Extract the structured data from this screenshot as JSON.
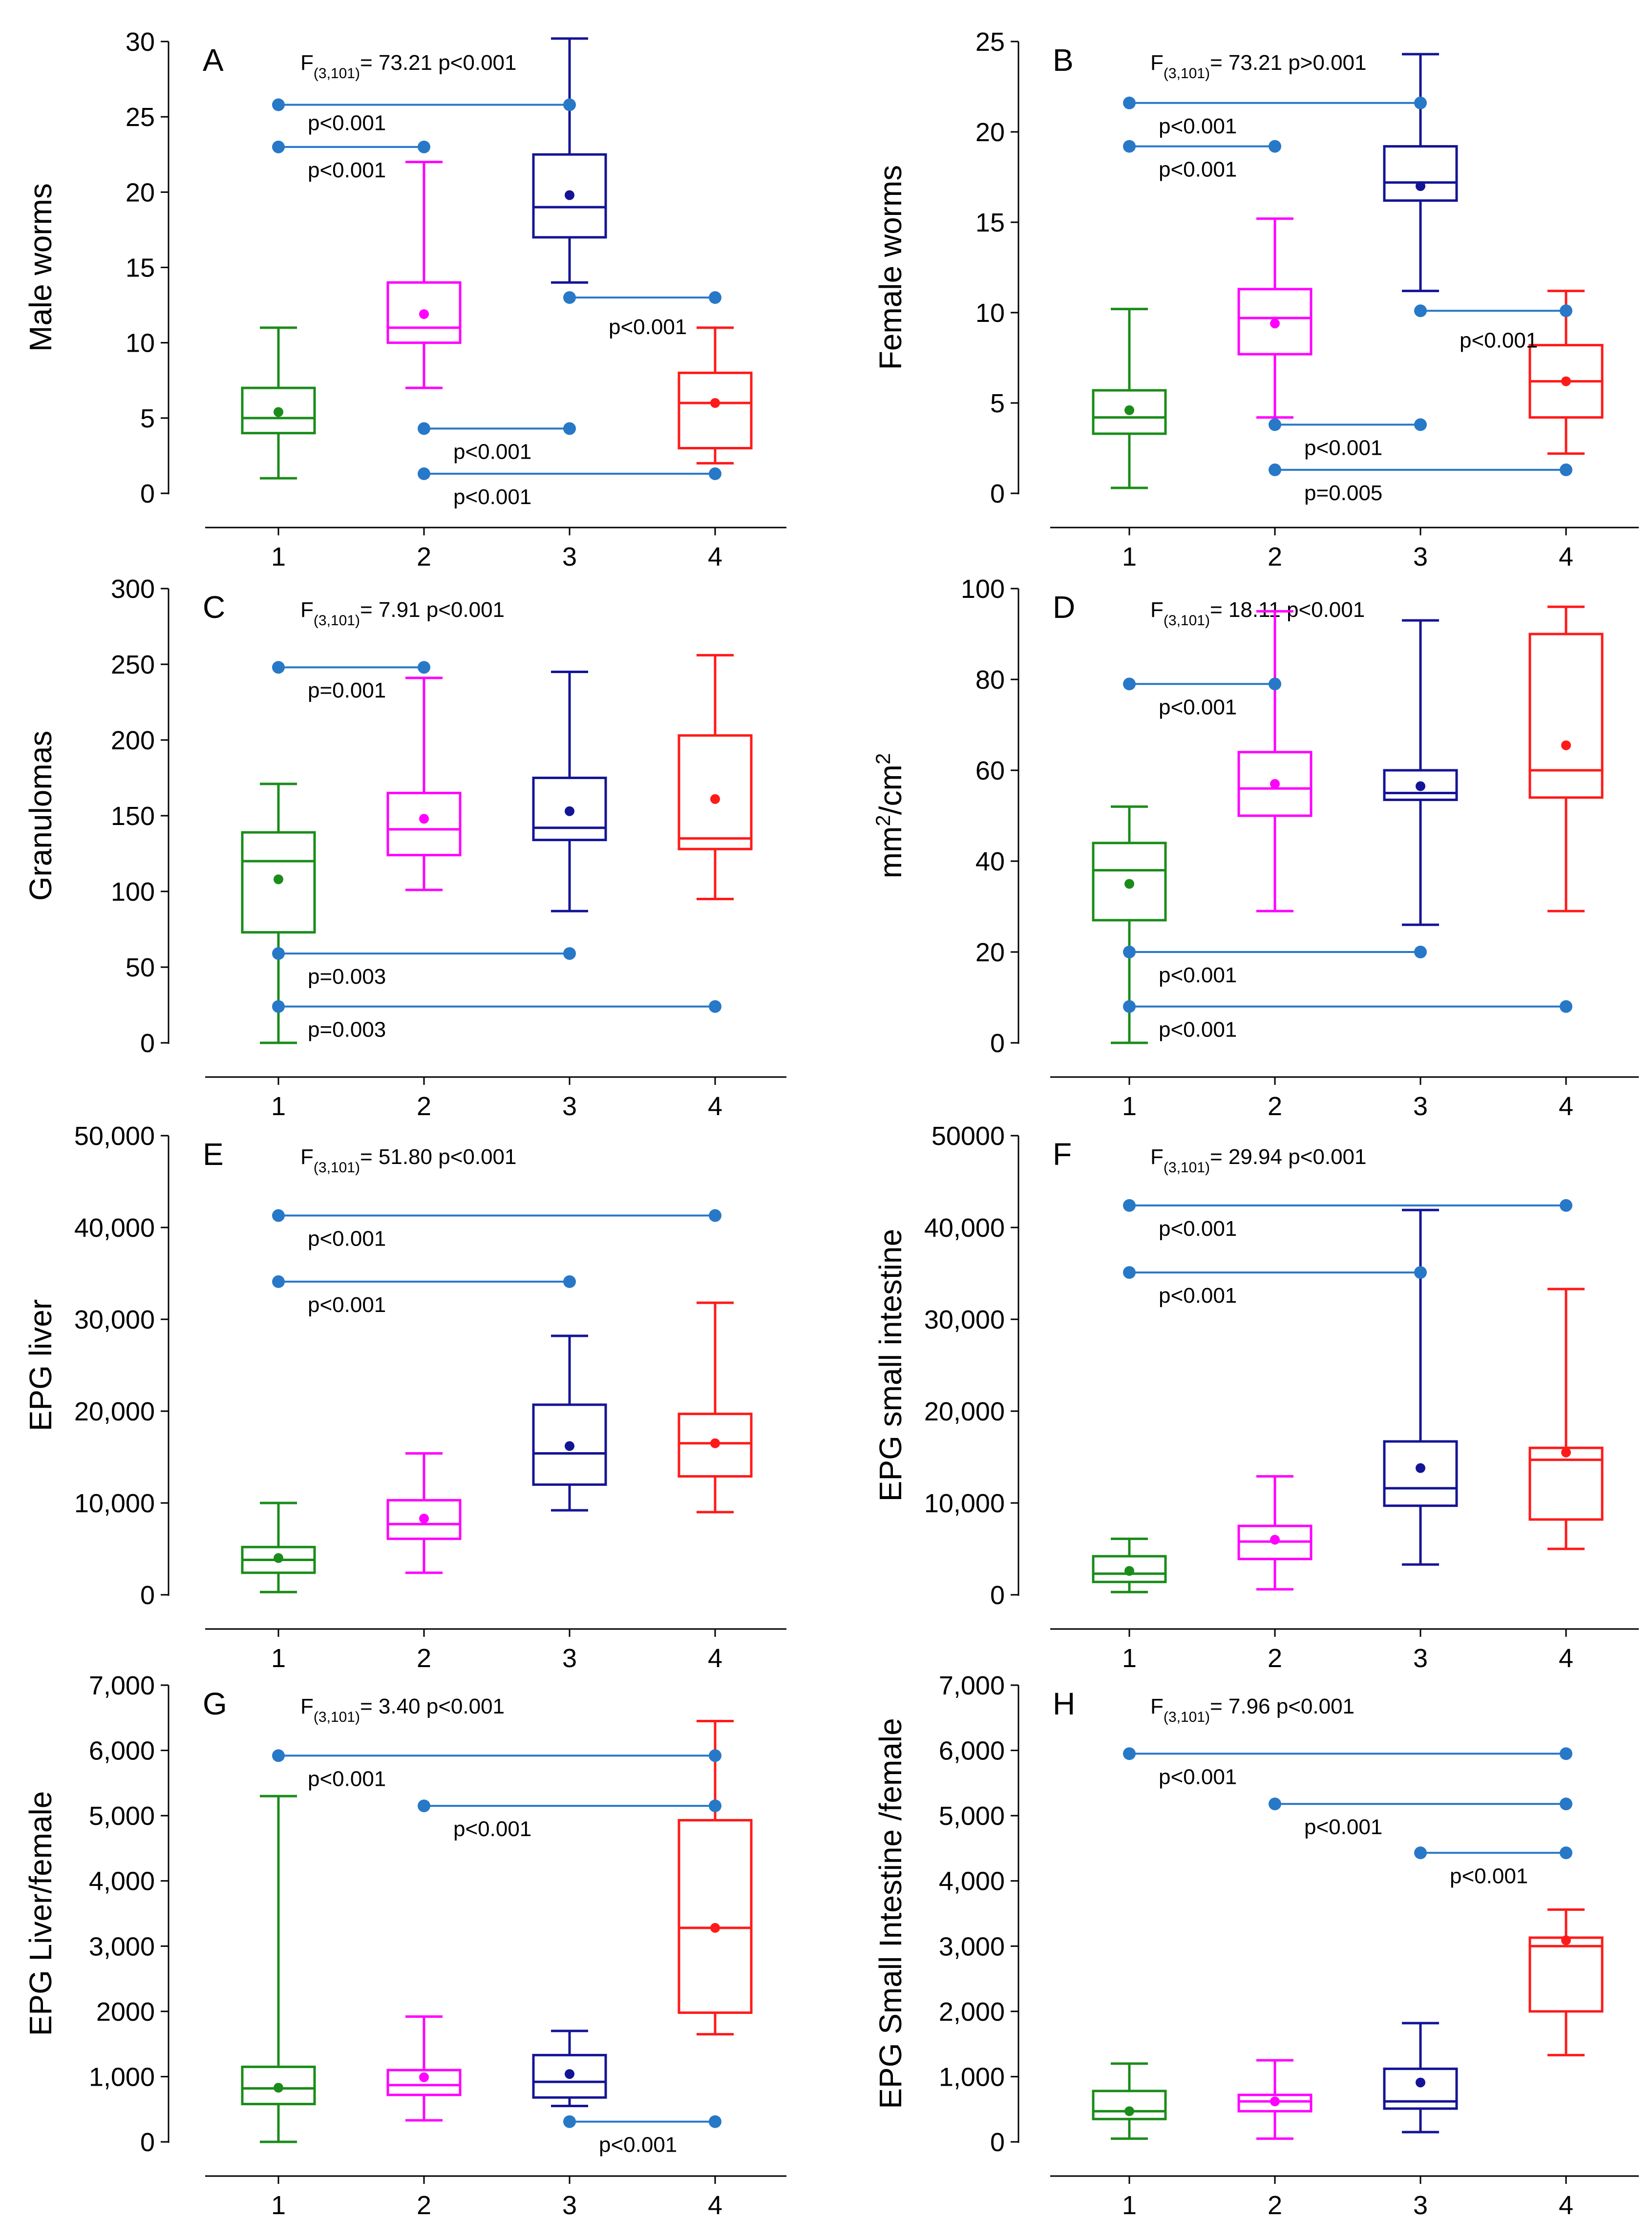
{
  "figure": {
    "group_colors": [
      "#1a8c1a",
      "#ff00ff",
      "#141496",
      "#ff1a1a"
    ],
    "annotation_color": "#2878c8"
  },
  "chart_data": [
    {
      "type": "box",
      "panel": "A",
      "ylabel": "Male worms",
      "ylim": [
        0,
        30
      ],
      "ytick_values": [
        0,
        5,
        10,
        15,
        20,
        25,
        30
      ],
      "ytick_labels": [
        "0",
        "5",
        "10",
        "15",
        "20",
        "25",
        "30"
      ],
      "categories": [
        "1",
        "2",
        "3",
        "4"
      ],
      "stat": {
        "prefix": "F",
        "sub": "(3,101)",
        "value": "= 73.21 p<0.001"
      },
      "boxes": [
        {
          "min": 1,
          "q1": 4,
          "median": 5,
          "q3": 7,
          "max": 11,
          "mean": 5.4
        },
        {
          "min": 7,
          "q1": 10,
          "median": 11,
          "q3": 14,
          "max": 22,
          "mean": 11.9
        },
        {
          "min": 14,
          "q1": 17,
          "median": 19,
          "q3": 22.5,
          "max": 30.2,
          "mean": 19.8
        },
        {
          "min": 2,
          "q1": 3,
          "median": 6,
          "q3": 8,
          "max": 11,
          "mean": 6
        }
      ],
      "comparisons": [
        {
          "from": 1,
          "to": 3,
          "y": 25.8,
          "label": "p<0.001",
          "label_pos": "above"
        },
        {
          "from": 1,
          "to": 2,
          "y": 23,
          "label": "p<0.001",
          "label_pos": "below"
        },
        {
          "from": 3,
          "to": 4,
          "y": 13,
          "label": "p<0.001",
          "label_pos": "below-right"
        },
        {
          "from": 2,
          "to": 3,
          "y": 4.3,
          "label": "p<0.001",
          "label_pos": "below"
        },
        {
          "from": 2,
          "to": 4,
          "y": 1.3,
          "label": "p<0.001",
          "label_pos": "below"
        }
      ]
    },
    {
      "type": "box",
      "panel": "B",
      "ylabel": "Female worms",
      "ylim": [
        0,
        25
      ],
      "ytick_values": [
        0,
        5,
        10,
        15,
        20,
        25
      ],
      "ytick_labels": [
        "0",
        "5",
        "10",
        "15",
        "20",
        "25"
      ],
      "categories": [
        "1",
        "2",
        "3",
        "4"
      ],
      "stat": {
        "prefix": "F",
        "sub": "(3,101)",
        "value": "= 73.21 p>0.001"
      },
      "boxes": [
        {
          "min": 0.3,
          "q1": 3.3,
          "median": 4.2,
          "q3": 5.7,
          "max": 10.2,
          "mean": 4.6
        },
        {
          "min": 4.2,
          "q1": 7.7,
          "median": 9.7,
          "q3": 11.3,
          "max": 15.2,
          "mean": 9.4
        },
        {
          "min": 11.2,
          "q1": 16.2,
          "median": 17.2,
          "q3": 19.2,
          "max": 24.3,
          "mean": 17
        },
        {
          "min": 2.2,
          "q1": 4.2,
          "median": 6.2,
          "q3": 8.2,
          "max": 11.2,
          "mean": 6.2
        }
      ],
      "comparisons": [
        {
          "from": 1,
          "to": 3,
          "y": 21.6,
          "label": "p<0.001",
          "label_pos": "below"
        },
        {
          "from": 1,
          "to": 2,
          "y": 19.2,
          "label": "p<0.001",
          "label_pos": "below"
        },
        {
          "from": 3,
          "to": 4,
          "y": 10.1,
          "label": "p<0.001",
          "label_pos": "below-right"
        },
        {
          "from": 2,
          "to": 3,
          "y": 3.8,
          "label": "p<0.001",
          "label_pos": "below"
        },
        {
          "from": 2,
          "to": 4,
          "y": 1.3,
          "label": "p=0.005",
          "label_pos": "below"
        }
      ]
    },
    {
      "type": "box",
      "panel": "C",
      "ylabel": "Granulomas",
      "ylim": [
        0,
        300
      ],
      "ytick_values": [
        0,
        50,
        100,
        150,
        200,
        250,
        300
      ],
      "ytick_labels": [
        "0",
        "50",
        "100",
        "150",
        "200",
        "250",
        "300"
      ],
      "categories": [
        "1",
        "2",
        "3",
        "4"
      ],
      "stat": {
        "prefix": "F",
        "sub": "(3,101)",
        "value": "= 7.91 p<0.001"
      },
      "boxes": [
        {
          "min": 0,
          "q1": 73,
          "median": 120,
          "q3": 139,
          "max": 171,
          "mean": 108
        },
        {
          "min": 101,
          "q1": 124,
          "median": 141,
          "q3": 165,
          "max": 241,
          "mean": 148
        },
        {
          "min": 87,
          "q1": 134,
          "median": 142,
          "q3": 175,
          "max": 245,
          "mean": 153
        },
        {
          "min": 95,
          "q1": 128,
          "median": 135,
          "q3": 203,
          "max": 256,
          "mean": 161
        }
      ],
      "comparisons": [
        {
          "from": 1,
          "to": 2,
          "y": 248,
          "label": "p=0.001",
          "label_pos": "below"
        },
        {
          "from": 1,
          "to": 3,
          "y": 59,
          "label": "p=0.003",
          "label_pos": "below"
        },
        {
          "from": 1,
          "to": 4,
          "y": 24,
          "label": "p=0.003",
          "label_pos": "below"
        }
      ]
    },
    {
      "type": "box",
      "panel": "D",
      "ylabel": "mm²/cm²",
      "ylim": [
        0,
        100
      ],
      "ytick_values": [
        0,
        20,
        40,
        60,
        80,
        100
      ],
      "ytick_labels": [
        "0",
        "20",
        "40",
        "60",
        "80",
        "100"
      ],
      "categories": [
        "1",
        "2",
        "3",
        "4"
      ],
      "stat": {
        "prefix": "F",
        "sub": "(3,101)",
        "value": "= 18.11 p<0.001"
      },
      "boxes": [
        {
          "min": 0,
          "q1": 27,
          "median": 38,
          "q3": 44,
          "max": 52,
          "mean": 35
        },
        {
          "min": 29,
          "q1": 50,
          "median": 56,
          "q3": 64,
          "max": 95,
          "mean": 57
        },
        {
          "min": 26,
          "q1": 53.5,
          "median": 55,
          "q3": 60,
          "max": 93,
          "mean": 56.5
        },
        {
          "min": 29,
          "q1": 54,
          "median": 60,
          "q3": 90,
          "max": 96,
          "mean": 65.5
        }
      ],
      "comparisons": [
        {
          "from": 1,
          "to": 2,
          "y": 79,
          "label": "p<0.001",
          "label_pos": "below"
        },
        {
          "from": 1,
          "to": 3,
          "y": 20,
          "label": "p<0.001",
          "label_pos": "below"
        },
        {
          "from": 1,
          "to": 4,
          "y": 8,
          "label": "p<0.001",
          "label_pos": "below"
        }
      ]
    },
    {
      "type": "box",
      "panel": "E",
      "ylabel": "EPG liver",
      "ylim": [
        0,
        50000
      ],
      "ytick_values": [
        0,
        10000,
        20000,
        30000,
        40000,
        50000
      ],
      "ytick_labels": [
        "0",
        "10,000",
        "20,000",
        "30,000",
        "40,000",
        "50,000"
      ],
      "categories": [
        "1",
        "2",
        "3",
        "4"
      ],
      "stat": {
        "prefix": "F",
        "sub": "(3,101)",
        "value": "= 51.80 p<0.001"
      },
      "boxes": [
        {
          "min": 300,
          "q1": 2400,
          "median": 3800,
          "q3": 5200,
          "max": 10000,
          "mean": 4000
        },
        {
          "min": 2400,
          "q1": 6100,
          "median": 7700,
          "q3": 10300,
          "max": 15400,
          "mean": 8300
        },
        {
          "min": 9200,
          "q1": 12000,
          "median": 15400,
          "q3": 20700,
          "max": 28200,
          "mean": 16200
        },
        {
          "min": 9000,
          "q1": 12900,
          "median": 16500,
          "q3": 19700,
          "max": 31800,
          "mean": 16500
        }
      ],
      "comparisons": [
        {
          "from": 1,
          "to": 4,
          "y": 41300,
          "label": "p<0.001",
          "label_pos": "below"
        },
        {
          "from": 1,
          "to": 3,
          "y": 34100,
          "label": "p<0.001",
          "label_pos": "below"
        }
      ]
    },
    {
      "type": "box",
      "panel": "F",
      "ylabel": "EPG small intestine",
      "ylim": [
        0,
        50000
      ],
      "ytick_values": [
        0,
        10000,
        20000,
        30000,
        40000,
        50000
      ],
      "ytick_labels": [
        "0",
        "10,000",
        "20,000",
        "30,000",
        "40,000",
        "50000"
      ],
      "categories": [
        "1",
        "2",
        "3",
        "4"
      ],
      "stat": {
        "prefix": "F",
        "sub": "(3,101)",
        "value": "= 29.94 p<0.001"
      },
      "boxes": [
        {
          "min": 300,
          "q1": 1400,
          "median": 2300,
          "q3": 4200,
          "max": 6100,
          "mean": 2600
        },
        {
          "min": 600,
          "q1": 3900,
          "median": 5800,
          "q3": 7500,
          "max": 12900,
          "mean": 6000
        },
        {
          "min": 3300,
          "q1": 9700,
          "median": 11600,
          "q3": 16700,
          "max": 41900,
          "mean": 13800
        },
        {
          "min": 5000,
          "q1": 8200,
          "median": 14700,
          "q3": 16000,
          "max": 33300,
          "mean": 15500
        }
      ],
      "comparisons": [
        {
          "from": 1,
          "to": 4,
          "y": 42400,
          "label": "p<0.001",
          "label_pos": "below"
        },
        {
          "from": 1,
          "to": 3,
          "y": 35100,
          "label": "p<0.001",
          "label_pos": "below"
        }
      ]
    },
    {
      "type": "box",
      "panel": "G",
      "ylabel": "EPG Liver/female",
      "ylim": [
        0,
        7000
      ],
      "ytick_values": [
        0,
        1000,
        2000,
        3000,
        4000,
        5000,
        6000,
        7000
      ],
      "ytick_labels": [
        "0",
        "1,000",
        "2000",
        "3,000",
        "4,000",
        "5,000",
        "6,000",
        "7,000"
      ],
      "categories": [
        "1",
        "2",
        "3",
        "4"
      ],
      "stat": {
        "prefix": "F",
        "sub": "(3,101)",
        "value": "= 3.40 p<0.001"
      },
      "boxes": [
        {
          "min": 0,
          "q1": 580,
          "median": 820,
          "q3": 1150,
          "max": 5300,
          "mean": 830
        },
        {
          "min": 330,
          "q1": 720,
          "median": 870,
          "q3": 1100,
          "max": 1920,
          "mean": 990
        },
        {
          "min": 550,
          "q1": 680,
          "median": 920,
          "q3": 1330,
          "max": 1700,
          "mean": 1040
        },
        {
          "min": 1650,
          "q1": 1980,
          "median": 3280,
          "q3": 4930,
          "max": 6450,
          "mean": 3280
        }
      ],
      "comparisons": [
        {
          "from": 1,
          "to": 4,
          "y": 5920,
          "label": "p<0.001",
          "label_pos": "below"
        },
        {
          "from": 2,
          "to": 4,
          "y": 5150,
          "label": "p<0.001",
          "label_pos": "below"
        },
        {
          "from": 3,
          "to": 4,
          "y": 310,
          "label": "p<0.001",
          "label_pos": "below"
        }
      ]
    },
    {
      "type": "box",
      "panel": "H",
      "ylabel": "EPG Small Intestine /female",
      "ylim": [
        0,
        7000
      ],
      "ytick_values": [
        0,
        1000,
        2000,
        3000,
        4000,
        5000,
        6000,
        7000
      ],
      "ytick_labels": [
        "0",
        "1,000",
        "2,000",
        "3,000",
        "4,000",
        "5,000",
        "6,000",
        "7,000"
      ],
      "categories": [
        "1",
        "2",
        "3",
        "4"
      ],
      "stat": {
        "prefix": "F",
        "sub": "(3,101)",
        "value": "= 7.96 p<0.001"
      },
      "boxes": [
        {
          "min": 50,
          "q1": 350,
          "median": 470,
          "q3": 780,
          "max": 1200,
          "mean": 470
        },
        {
          "min": 50,
          "q1": 470,
          "median": 620,
          "q3": 720,
          "max": 1250,
          "mean": 620
        },
        {
          "min": 150,
          "q1": 510,
          "median": 620,
          "q3": 1120,
          "max": 1820,
          "mean": 910
        },
        {
          "min": 1330,
          "q1": 2000,
          "median": 3000,
          "q3": 3130,
          "max": 3560,
          "mean": 3090
        }
      ],
      "comparisons": [
        {
          "from": 1,
          "to": 4,
          "y": 5950,
          "label": "p<0.001",
          "label_pos": "below"
        },
        {
          "from": 2,
          "to": 4,
          "y": 5180,
          "label": "p<0.001",
          "label_pos": "below"
        },
        {
          "from": 3,
          "to": 4,
          "y": 4430,
          "label": "p<0.001",
          "label_pos": "below"
        }
      ]
    }
  ]
}
